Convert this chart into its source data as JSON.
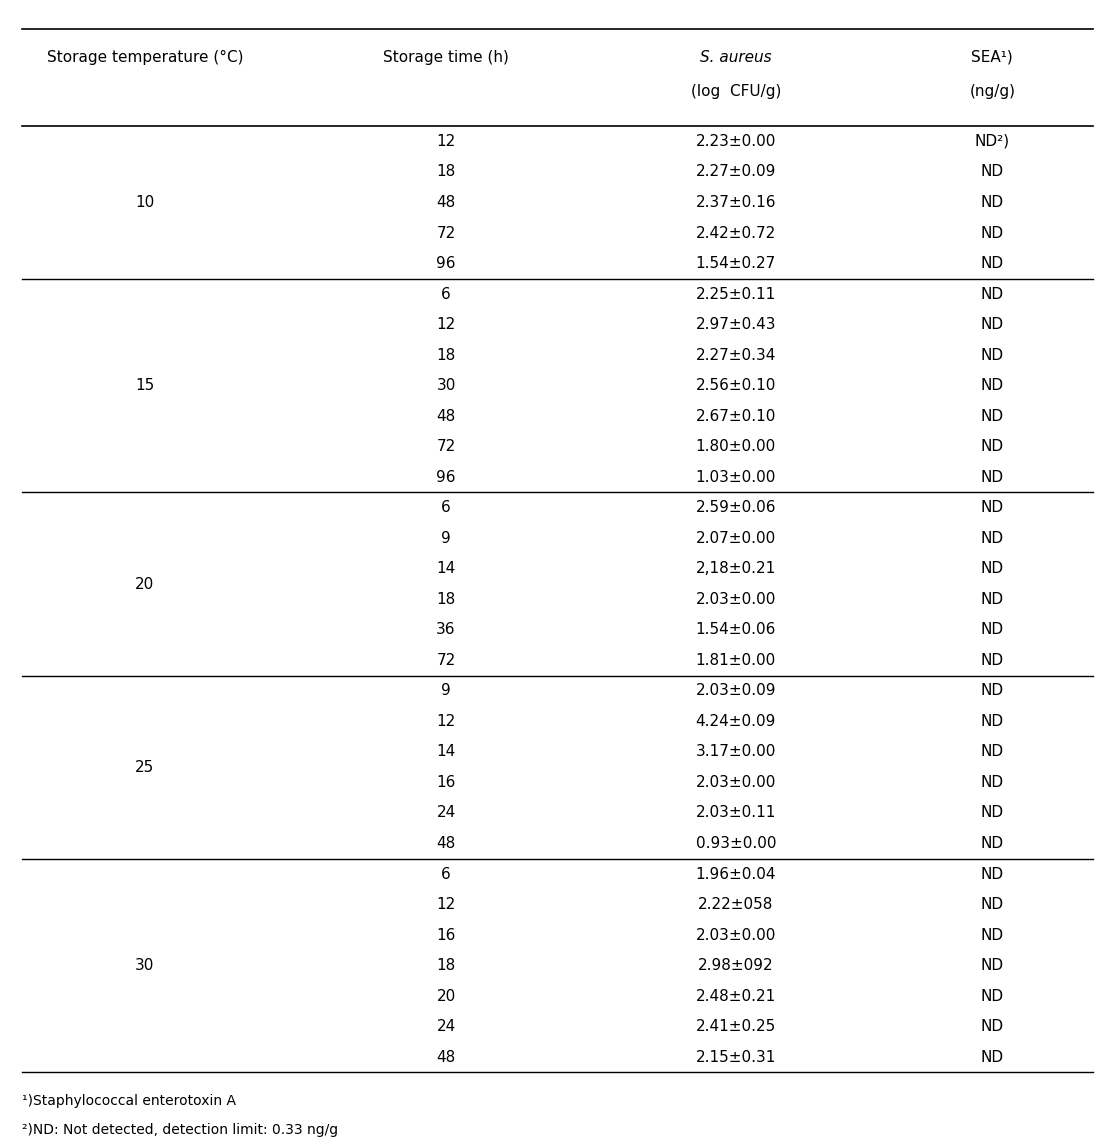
{
  "col_headers": [
    "Storage temperature (°C)",
    "Storage time (h)",
    "S. aureus\n(log  CFU/g)",
    "SEA¹)\n(ng/g)"
  ],
  "col_header_line1": [
    "Storage temperature (°C)",
    "Storage time (h)",
    "S. aureus",
    "SEA¹)"
  ],
  "col_header_line2": [
    "",
    "",
    "(log  CFU/g)",
    "(ng/g)"
  ],
  "groups": [
    {
      "temp": "10",
      "rows": [
        [
          "12",
          "2.23±0.00",
          "ND²)"
        ],
        [
          "18",
          "2.27±0.09",
          "ND"
        ],
        [
          "48",
          "2.37±0.16",
          "ND"
        ],
        [
          "72",
          "2.42±0.72",
          "ND"
        ],
        [
          "96",
          "1.54±0.27",
          "ND"
        ]
      ]
    },
    {
      "temp": "15",
      "rows": [
        [
          "6",
          "2.25±0.11",
          "ND"
        ],
        [
          "12",
          "2.97±0.43",
          "ND"
        ],
        [
          "18",
          "2.27±0.34",
          "ND"
        ],
        [
          "30",
          "2.56±0.10",
          "ND"
        ],
        [
          "48",
          "2.67±0.10",
          "ND"
        ],
        [
          "72",
          "1.80±0.00",
          "ND"
        ],
        [
          "96",
          "1.03±0.00",
          "ND"
        ]
      ]
    },
    {
      "temp": "20",
      "rows": [
        [
          "6",
          "2.59±0.06",
          "ND"
        ],
        [
          "9",
          "2.07±0.00",
          "ND"
        ],
        [
          "14",
          "2,18±0.21",
          "ND"
        ],
        [
          "18",
          "2.03±0.00",
          "ND"
        ],
        [
          "36",
          "1.54±0.06",
          "ND"
        ],
        [
          "72",
          "1.81±0.00",
          "ND"
        ]
      ]
    },
    {
      "temp": "25",
      "rows": [
        [
          "9",
          "2.03±0.09",
          "ND"
        ],
        [
          "12",
          "4.24±0.09",
          "ND"
        ],
        [
          "14",
          "3.17±0.00",
          "ND"
        ],
        [
          "16",
          "2.03±0.00",
          "ND"
        ],
        [
          "24",
          "2.03±0.11",
          "ND"
        ],
        [
          "48",
          "0.93±0.00",
          "ND"
        ]
      ]
    },
    {
      "temp": "30",
      "rows": [
        [
          "6",
          "1.96±0.04",
          "ND"
        ],
        [
          "12",
          "2.22±058",
          "ND"
        ],
        [
          "16",
          "2.03±0.00",
          "ND"
        ],
        [
          "18",
          "2.98±092",
          "ND"
        ],
        [
          "20",
          "2.48±0.21",
          "ND"
        ],
        [
          "24",
          "2.41±0.25",
          "ND"
        ],
        [
          "48",
          "2.15±0.31",
          "ND"
        ]
      ]
    }
  ],
  "footnotes": [
    "¹)Staphylococcal enterotoxin A",
    "²)ND: Not detected, detection limit: 0.33 ng/g"
  ],
  "bg_color": "#ffffff",
  "text_color": "#000000",
  "line_color": "#000000"
}
